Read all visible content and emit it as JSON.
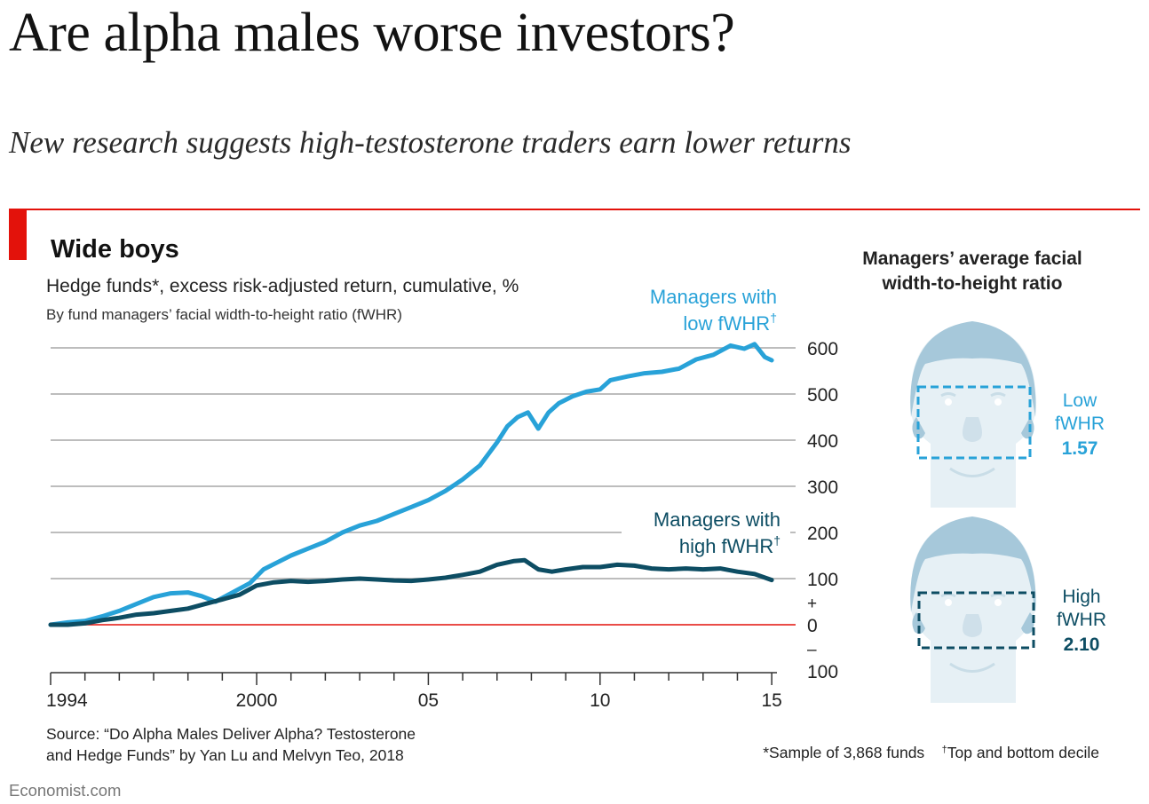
{
  "headline": "Are alpha males worse investors?",
  "subheadline": "New research suggests high-testosterone traders earn lower returns",
  "brand": "Economist.com",
  "source_line1": "Source: “Do Alpha Males Deliver Alpha? Testosterone",
  "source_line2": "and Hedge Funds” by Yan Lu and Melvyn Teo, 2018",
  "note_sample": "*Sample of 3,868 funds",
  "note_dagger_mark": "†",
  "note_dagger": "Top and bottom decile",
  "colors": {
    "accent_red": "#e3120b",
    "low_fwhr": "#28a2d8",
    "high_fwhr": "#0d4d63",
    "grid": "#bdbdbd",
    "face": "#e4eff5",
    "hair": "#9ec3d6"
  },
  "faces": {
    "title_line1": "Managers’ average facial",
    "title_line2": "width-to-height ratio",
    "low": {
      "line1": "Low",
      "line2": "fWHR",
      "value": "1.57"
    },
    "high": {
      "line1": "High",
      "line2": "fWHR",
      "value": "2.10"
    }
  },
  "chart_data": {
    "type": "line",
    "title": "Wide boys",
    "subtitle": "Hedge funds*, excess risk-adjusted return, cumulative, %",
    "subtitle2": "By fund managers’ facial width-to-height ratio (fWHR)",
    "ylim": [
      -100,
      600
    ],
    "xlim": [
      1994,
      2015.1
    ],
    "y_ticks": [
      {
        "value": 600,
        "label": "600"
      },
      {
        "value": 500,
        "label": "500"
      },
      {
        "value": 400,
        "label": "400"
      },
      {
        "value": 300,
        "label": "300"
      },
      {
        "value": 200,
        "label": "200"
      },
      {
        "value": 100,
        "label": "100"
      },
      {
        "value": 0,
        "label": "0"
      },
      {
        "value": -100,
        "label": "100"
      }
    ],
    "y_sign_plus": "+",
    "y_sign_minus": "–",
    "x_ticks": [
      {
        "value": 1994,
        "label": "1994"
      },
      {
        "value": 2000,
        "label": "2000"
      },
      {
        "value": 2005,
        "label": "05"
      },
      {
        "value": 2010,
        "label": "10"
      },
      {
        "value": 2015,
        "label": "15"
      }
    ],
    "grid": true,
    "zero_line_color": "#e3120b",
    "series": [
      {
        "name": "Managers with low fWHR†",
        "label_line1": "Managers with",
        "label_line2": "low fWHR",
        "label_mark": "†",
        "color": "#28a2d8",
        "points": [
          [
            1994.0,
            0
          ],
          [
            1994.5,
            5
          ],
          [
            1995.0,
            8
          ],
          [
            1995.5,
            18
          ],
          [
            1996.0,
            30
          ],
          [
            1996.5,
            45
          ],
          [
            1997.0,
            60
          ],
          [
            1997.5,
            68
          ],
          [
            1998.0,
            70
          ],
          [
            1998.4,
            62
          ],
          [
            1998.8,
            50
          ],
          [
            1999.3,
            70
          ],
          [
            1999.8,
            90
          ],
          [
            2000.2,
            120
          ],
          [
            2000.6,
            135
          ],
          [
            2001.0,
            150
          ],
          [
            2001.5,
            165
          ],
          [
            2002.0,
            180
          ],
          [
            2002.5,
            200
          ],
          [
            2003.0,
            215
          ],
          [
            2003.5,
            225
          ],
          [
            2004.0,
            240
          ],
          [
            2004.5,
            255
          ],
          [
            2005.0,
            270
          ],
          [
            2005.5,
            290
          ],
          [
            2006.0,
            315
          ],
          [
            2006.5,
            345
          ],
          [
            2007.0,
            395
          ],
          [
            2007.3,
            430
          ],
          [
            2007.6,
            450
          ],
          [
            2007.9,
            460
          ],
          [
            2008.2,
            425
          ],
          [
            2008.5,
            460
          ],
          [
            2008.8,
            480
          ],
          [
            2009.2,
            495
          ],
          [
            2009.6,
            505
          ],
          [
            2010.0,
            510
          ],
          [
            2010.3,
            530
          ],
          [
            2010.8,
            538
          ],
          [
            2011.3,
            545
          ],
          [
            2011.8,
            548
          ],
          [
            2012.3,
            555
          ],
          [
            2012.8,
            575
          ],
          [
            2013.3,
            585
          ],
          [
            2013.8,
            605
          ],
          [
            2014.2,
            598
          ],
          [
            2014.5,
            608
          ],
          [
            2014.8,
            580
          ],
          [
            2015.0,
            573
          ]
        ]
      },
      {
        "name": "Managers with high fWHR†",
        "label_line1": "Managers with",
        "label_line2": "high fWHR",
        "label_mark": "†",
        "color": "#0d4d63",
        "points": [
          [
            1994.0,
            0
          ],
          [
            1994.5,
            0
          ],
          [
            1995.0,
            3
          ],
          [
            1995.5,
            10
          ],
          [
            1996.0,
            15
          ],
          [
            1996.5,
            22
          ],
          [
            1997.0,
            25
          ],
          [
            1997.5,
            30
          ],
          [
            1998.0,
            35
          ],
          [
            1998.5,
            45
          ],
          [
            1999.0,
            55
          ],
          [
            1999.5,
            65
          ],
          [
            2000.0,
            85
          ],
          [
            2000.5,
            92
          ],
          [
            2001.0,
            95
          ],
          [
            2001.5,
            93
          ],
          [
            2002.0,
            95
          ],
          [
            2002.5,
            98
          ],
          [
            2003.0,
            100
          ],
          [
            2003.5,
            98
          ],
          [
            2004.0,
            96
          ],
          [
            2004.5,
            95
          ],
          [
            2005.0,
            98
          ],
          [
            2005.5,
            102
          ],
          [
            2006.0,
            108
          ],
          [
            2006.5,
            115
          ],
          [
            2007.0,
            130
          ],
          [
            2007.5,
            138
          ],
          [
            2007.8,
            140
          ],
          [
            2008.2,
            120
          ],
          [
            2008.6,
            115
          ],
          [
            2009.0,
            120
          ],
          [
            2009.5,
            125
          ],
          [
            2010.0,
            125
          ],
          [
            2010.5,
            130
          ],
          [
            2011.0,
            128
          ],
          [
            2011.5,
            122
          ],
          [
            2012.0,
            120
          ],
          [
            2012.5,
            122
          ],
          [
            2013.0,
            120
          ],
          [
            2013.5,
            122
          ],
          [
            2014.0,
            115
          ],
          [
            2014.5,
            110
          ],
          [
            2015.0,
            97
          ]
        ]
      }
    ]
  }
}
